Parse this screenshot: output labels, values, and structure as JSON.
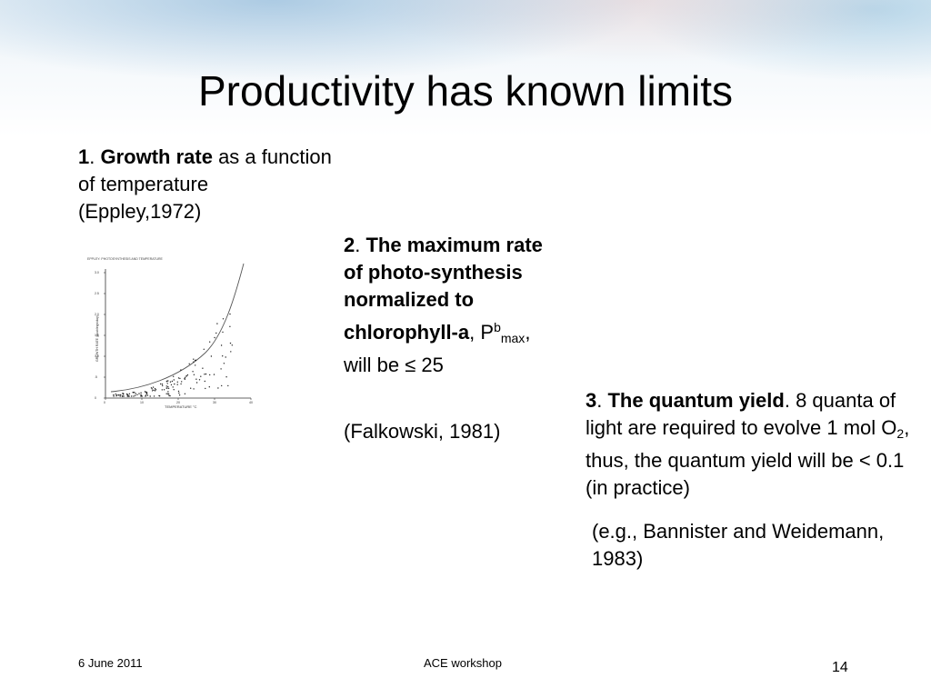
{
  "slide": {
    "title": "Productivity has known limits"
  },
  "point1": {
    "number": "1",
    "sep": ". ",
    "bold": "Growth rate",
    "rest": " as a function of temperature (Eppley,1972)"
  },
  "figure": {
    "header": "EPPLEY: PHOTOSYNTHESIS AND TEMPERATURE",
    "ylabel": "GROWTH RATE (doublings/day)",
    "xlabel": "TEMPERATURE °C",
    "xticks": [
      "0",
      "10",
      "20",
      "30",
      "40"
    ],
    "yticks": [
      "0",
      ".5",
      "1.0",
      "1.5",
      "2.0",
      "2.5",
      "3.0"
    ]
  },
  "point2": {
    "number": "2",
    "sep": ". ",
    "bold": "The maximum rate of photo-synthesis normalized to chlorophyll-a",
    "comma": ",",
    "p": "P",
    "sup": "b",
    "sub": "max",
    "rest": ", will be ≤ 25",
    "cite": "(Falkowski, 1981)"
  },
  "point3": {
    "number": "3",
    "sep": ". ",
    "bold": "The quantum yield",
    "rest1": ". 8 quanta of light are required to evolve 1 mol O",
    "sub": "2",
    "rest2": ", thus, the quantum yield will be < 0.1 (in practice)",
    "cite": "(e.g., Bannister and Weidemann, 1983)"
  },
  "footer": {
    "date": "6 June 2011",
    "center": "ACE workshop",
    "page": "14"
  }
}
